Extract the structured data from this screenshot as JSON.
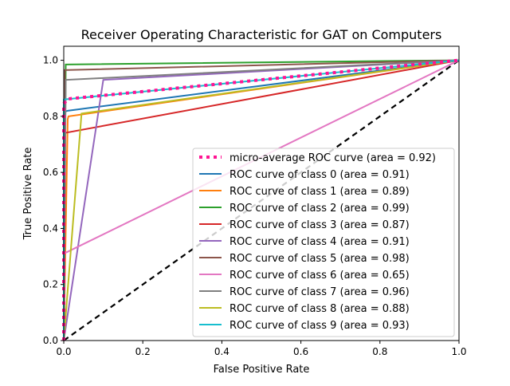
{
  "chart_data": {
    "type": "line",
    "title": "Receiver Operating Characteristic for GAT on Computers",
    "xlabel": "False Positive Rate",
    "ylabel": "True Positive Rate",
    "xlim": [
      0.0,
      1.0
    ],
    "ylim": [
      0.0,
      1.05
    ],
    "x_ticks": [
      "0.0",
      "0.2",
      "0.4",
      "0.6",
      "0.8",
      "1.0"
    ],
    "y_ticks": [
      "0.0",
      "0.2",
      "0.4",
      "0.6",
      "0.8",
      "1.0"
    ],
    "grid": false,
    "legend_position": "lower-right",
    "series": [
      {
        "name": "micro-average ROC curve (area = 0.92)",
        "color": "#ff1493",
        "style": "dotted",
        "x": [
          0.0,
          0.0,
          0.01,
          1.0
        ],
        "y": [
          0.0,
          0.845,
          0.862,
          1.0
        ]
      },
      {
        "name": "ROC curve of class 0 (area = 0.91)",
        "color": "#1f77b4",
        "style": "solid",
        "x": [
          0.0,
          0.0,
          0.01,
          1.0
        ],
        "y": [
          0.0,
          0.815,
          0.82,
          1.0
        ]
      },
      {
        "name": "ROC curve of class 1 (area = 0.89)",
        "color": "#ff7f0e",
        "style": "solid",
        "x": [
          0.0,
          0.01,
          0.012,
          1.0
        ],
        "y": [
          0.0,
          0.79,
          0.8,
          1.0
        ]
      },
      {
        "name": "ROC curve of class 2 (area = 0.99)",
        "color": "#2ca02c",
        "style": "solid",
        "x": [
          0.0,
          0.005,
          1.0
        ],
        "y": [
          0.0,
          0.985,
          1.0
        ]
      },
      {
        "name": "ROC curve of class 3 (area = 0.87)",
        "color": "#d62728",
        "style": "solid",
        "x": [
          0.0,
          0.0,
          1.0
        ],
        "y": [
          0.0,
          0.74,
          1.0
        ]
      },
      {
        "name": "ROC curve of class 4 (area = 0.91)",
        "color": "#9467bd",
        "style": "solid",
        "x": [
          0.0,
          0.1,
          1.0
        ],
        "y": [
          0.0,
          0.93,
          1.0
        ]
      },
      {
        "name": "ROC curve of class 5 (area = 0.98)",
        "color": "#8c564b",
        "style": "solid",
        "x": [
          0.0,
          0.003,
          1.0
        ],
        "y": [
          0.0,
          0.965,
          1.0
        ]
      },
      {
        "name": "ROC curve of class 6 (area = 0.65)",
        "color": "#e377c2",
        "style": "solid",
        "x": [
          0.0,
          0.0,
          1.0
        ],
        "y": [
          0.0,
          0.31,
          1.0
        ]
      },
      {
        "name": "ROC curve of class 7 (area = 0.96)",
        "color": "#7f7f7f",
        "style": "solid",
        "x": [
          0.0,
          0.005,
          1.0
        ],
        "y": [
          0.0,
          0.93,
          1.0
        ]
      },
      {
        "name": "ROC curve of class 8 (area = 0.88)",
        "color": "#bcbd22",
        "style": "solid",
        "x": [
          0.0,
          0.045,
          1.0
        ],
        "y": [
          0.0,
          0.81,
          1.0
        ]
      },
      {
        "name": "ROC curve of class 9 (area = 0.93)",
        "color": "#17becf",
        "style": "solid",
        "x": [
          0.0,
          0.0,
          1.0
        ],
        "y": [
          0.0,
          0.86,
          1.0
        ]
      }
    ],
    "reference_line": {
      "x": [
        0.0,
        1.0
      ],
      "y": [
        0.0,
        1.0
      ],
      "color": "#000000",
      "style": "dashed"
    }
  }
}
